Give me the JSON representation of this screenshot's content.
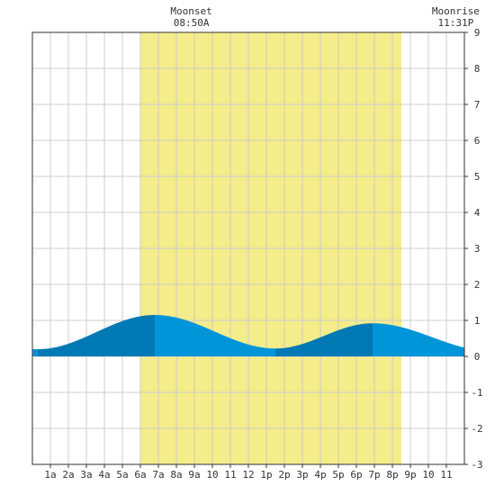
{
  "chart_data": {
    "type": "area",
    "title": "",
    "xlabel": "",
    "ylabel": "",
    "xlim": [
      0,
      24
    ],
    "ylim": [
      -3,
      9
    ],
    "grid": true,
    "x_ticks": [
      "1a",
      "2a",
      "3a",
      "4a",
      "5a",
      "6a",
      "7a",
      "8a",
      "9a",
      "10",
      "11",
      "12",
      "1p",
      "2p",
      "3p",
      "4p",
      "5p",
      "6p",
      "7p",
      "8p",
      "9p",
      "10",
      "11"
    ],
    "y_ticks": [
      "9",
      "8",
      "7",
      "6",
      "5",
      "4",
      "3",
      "2",
      "1",
      "0",
      "-1",
      "-2",
      "-3"
    ],
    "daylight": {
      "start_hour": 6.0,
      "end_hour": 20.5
    },
    "moon_events": [
      {
        "label": "Moonset",
        "time": "08:50A",
        "hour": 8.83
      },
      {
        "label": "Moonrise",
        "time": "11:31P",
        "hour": 23.52
      }
    ],
    "tide_extrema": [
      {
        "hour": 0.3,
        "value": 0.2,
        "kind": "low"
      },
      {
        "hour": 6.8,
        "value": 1.15,
        "kind": "high"
      },
      {
        "hour": 13.5,
        "value": 0.22,
        "kind": "low"
      },
      {
        "hour": 18.9,
        "value": 0.92,
        "kind": "high"
      },
      {
        "hour": 25.5,
        "value": 0.15,
        "kind": "low"
      }
    ],
    "colors": {
      "daylight": "#f5ec8a",
      "tide_light": "#0095d8",
      "tide_dark": "#0079b4",
      "grid": "#cccccc",
      "axis": "#333333"
    }
  }
}
